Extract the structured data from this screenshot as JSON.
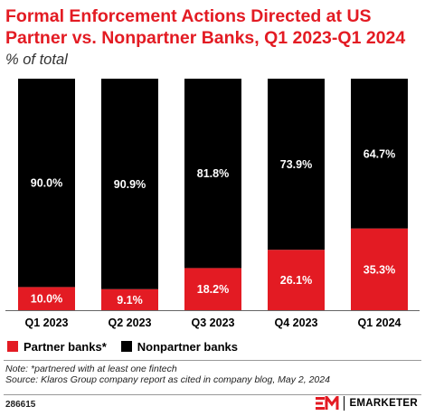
{
  "header": {
    "title": "Formal Enforcement Actions Directed at US Partner vs. Nonpartner Banks, Q1 2023-Q1 2024",
    "subtitle": "% of total"
  },
  "colors": {
    "partner": "#e31b23",
    "nonpartner": "#000000",
    "label_on_dark": "#ffffff"
  },
  "chart_data": {
    "type": "bar",
    "stacked": true,
    "categories": [
      "Q1 2023",
      "Q2 2023",
      "Q3 2023",
      "Q4 2023",
      "Q1 2024"
    ],
    "series": [
      {
        "name": "Partner banks*",
        "values": [
          10.0,
          9.1,
          18.2,
          26.1,
          35.3
        ],
        "labels": [
          "10.0%",
          "9.1%",
          "18.2%",
          "26.1%",
          "35.3%"
        ],
        "color": "#e31b23"
      },
      {
        "name": "Nonpartner banks",
        "values": [
          90.0,
          90.9,
          81.8,
          73.9,
          64.7
        ],
        "labels": [
          "90.0%",
          "90.9%",
          "81.8%",
          "73.9%",
          "64.7%"
        ],
        "color": "#000000"
      }
    ],
    "ylim": [
      0,
      100
    ],
    "grid": false,
    "legend_placement": "bottom-left"
  },
  "footer": {
    "note": "Note: *partnered with at least one fintech",
    "source": "Source: Klaros Group company report as cited in company blog, May 2, 2024",
    "chart_id": "286615",
    "brand_name": "EMARKETER",
    "brand_logo_icon": "em-logo-icon"
  }
}
